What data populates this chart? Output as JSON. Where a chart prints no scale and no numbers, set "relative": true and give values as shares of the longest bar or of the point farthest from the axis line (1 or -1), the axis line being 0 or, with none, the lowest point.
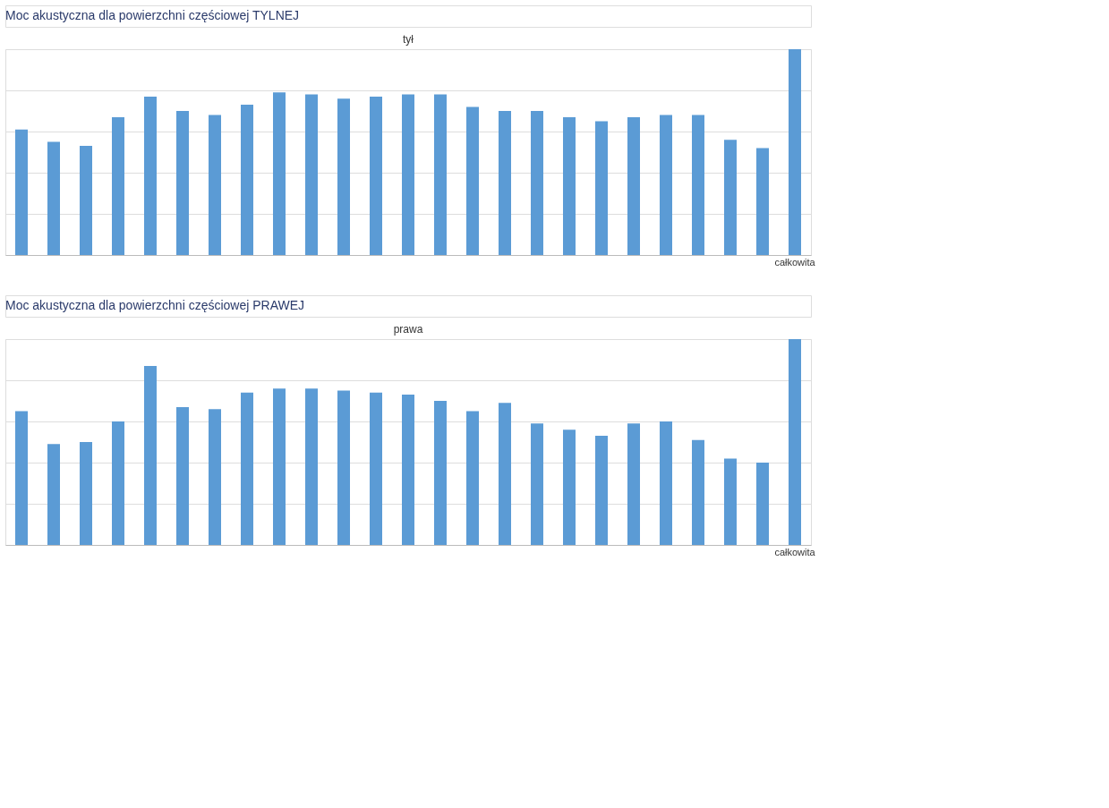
{
  "chart_data": [
    {
      "type": "bar",
      "title": "tył",
      "annotations": [
        "Moc akustyczna dla powierzchni częściowej TYLNEJ"
      ],
      "relative": true,
      "grid": "y",
      "color": "#5b9bd5",
      "categories": [
        null,
        null,
        null,
        null,
        null,
        null,
        null,
        null,
        null,
        null,
        null,
        null,
        null,
        null,
        null,
        null,
        null,
        null,
        null,
        null,
        null,
        null,
        null,
        null,
        "całkowita"
      ],
      "values": [
        0.61,
        0.55,
        0.53,
        0.67,
        0.77,
        0.7,
        0.68,
        0.73,
        0.79,
        0.78,
        0.76,
        0.77,
        0.78,
        0.78,
        0.72,
        0.7,
        0.7,
        0.67,
        0.65,
        0.67,
        0.68,
        0.68,
        0.56,
        0.52,
        1
      ]
    },
    {
      "type": "bar",
      "title": "prawa",
      "annotations": [
        "Moc akustyczna dla powierzchni częściowej PRAWEJ"
      ],
      "relative": true,
      "grid": "y",
      "color": "#5b9bd5",
      "categories": [
        null,
        null,
        null,
        null,
        null,
        null,
        null,
        null,
        null,
        null,
        null,
        null,
        null,
        null,
        null,
        null,
        null,
        null,
        null,
        null,
        null,
        null,
        null,
        null,
        "całkowita"
      ],
      "values": [
        0.65,
        0.49,
        0.5,
        0.6,
        0.87,
        0.67,
        0.66,
        0.74,
        0.76,
        0.76,
        0.75,
        0.74,
        0.73,
        0.7,
        0.65,
        0.69,
        0.59,
        0.56,
        0.53,
        0.59,
        0.6,
        0.51,
        0.42,
        0.4,
        1
      ]
    }
  ]
}
